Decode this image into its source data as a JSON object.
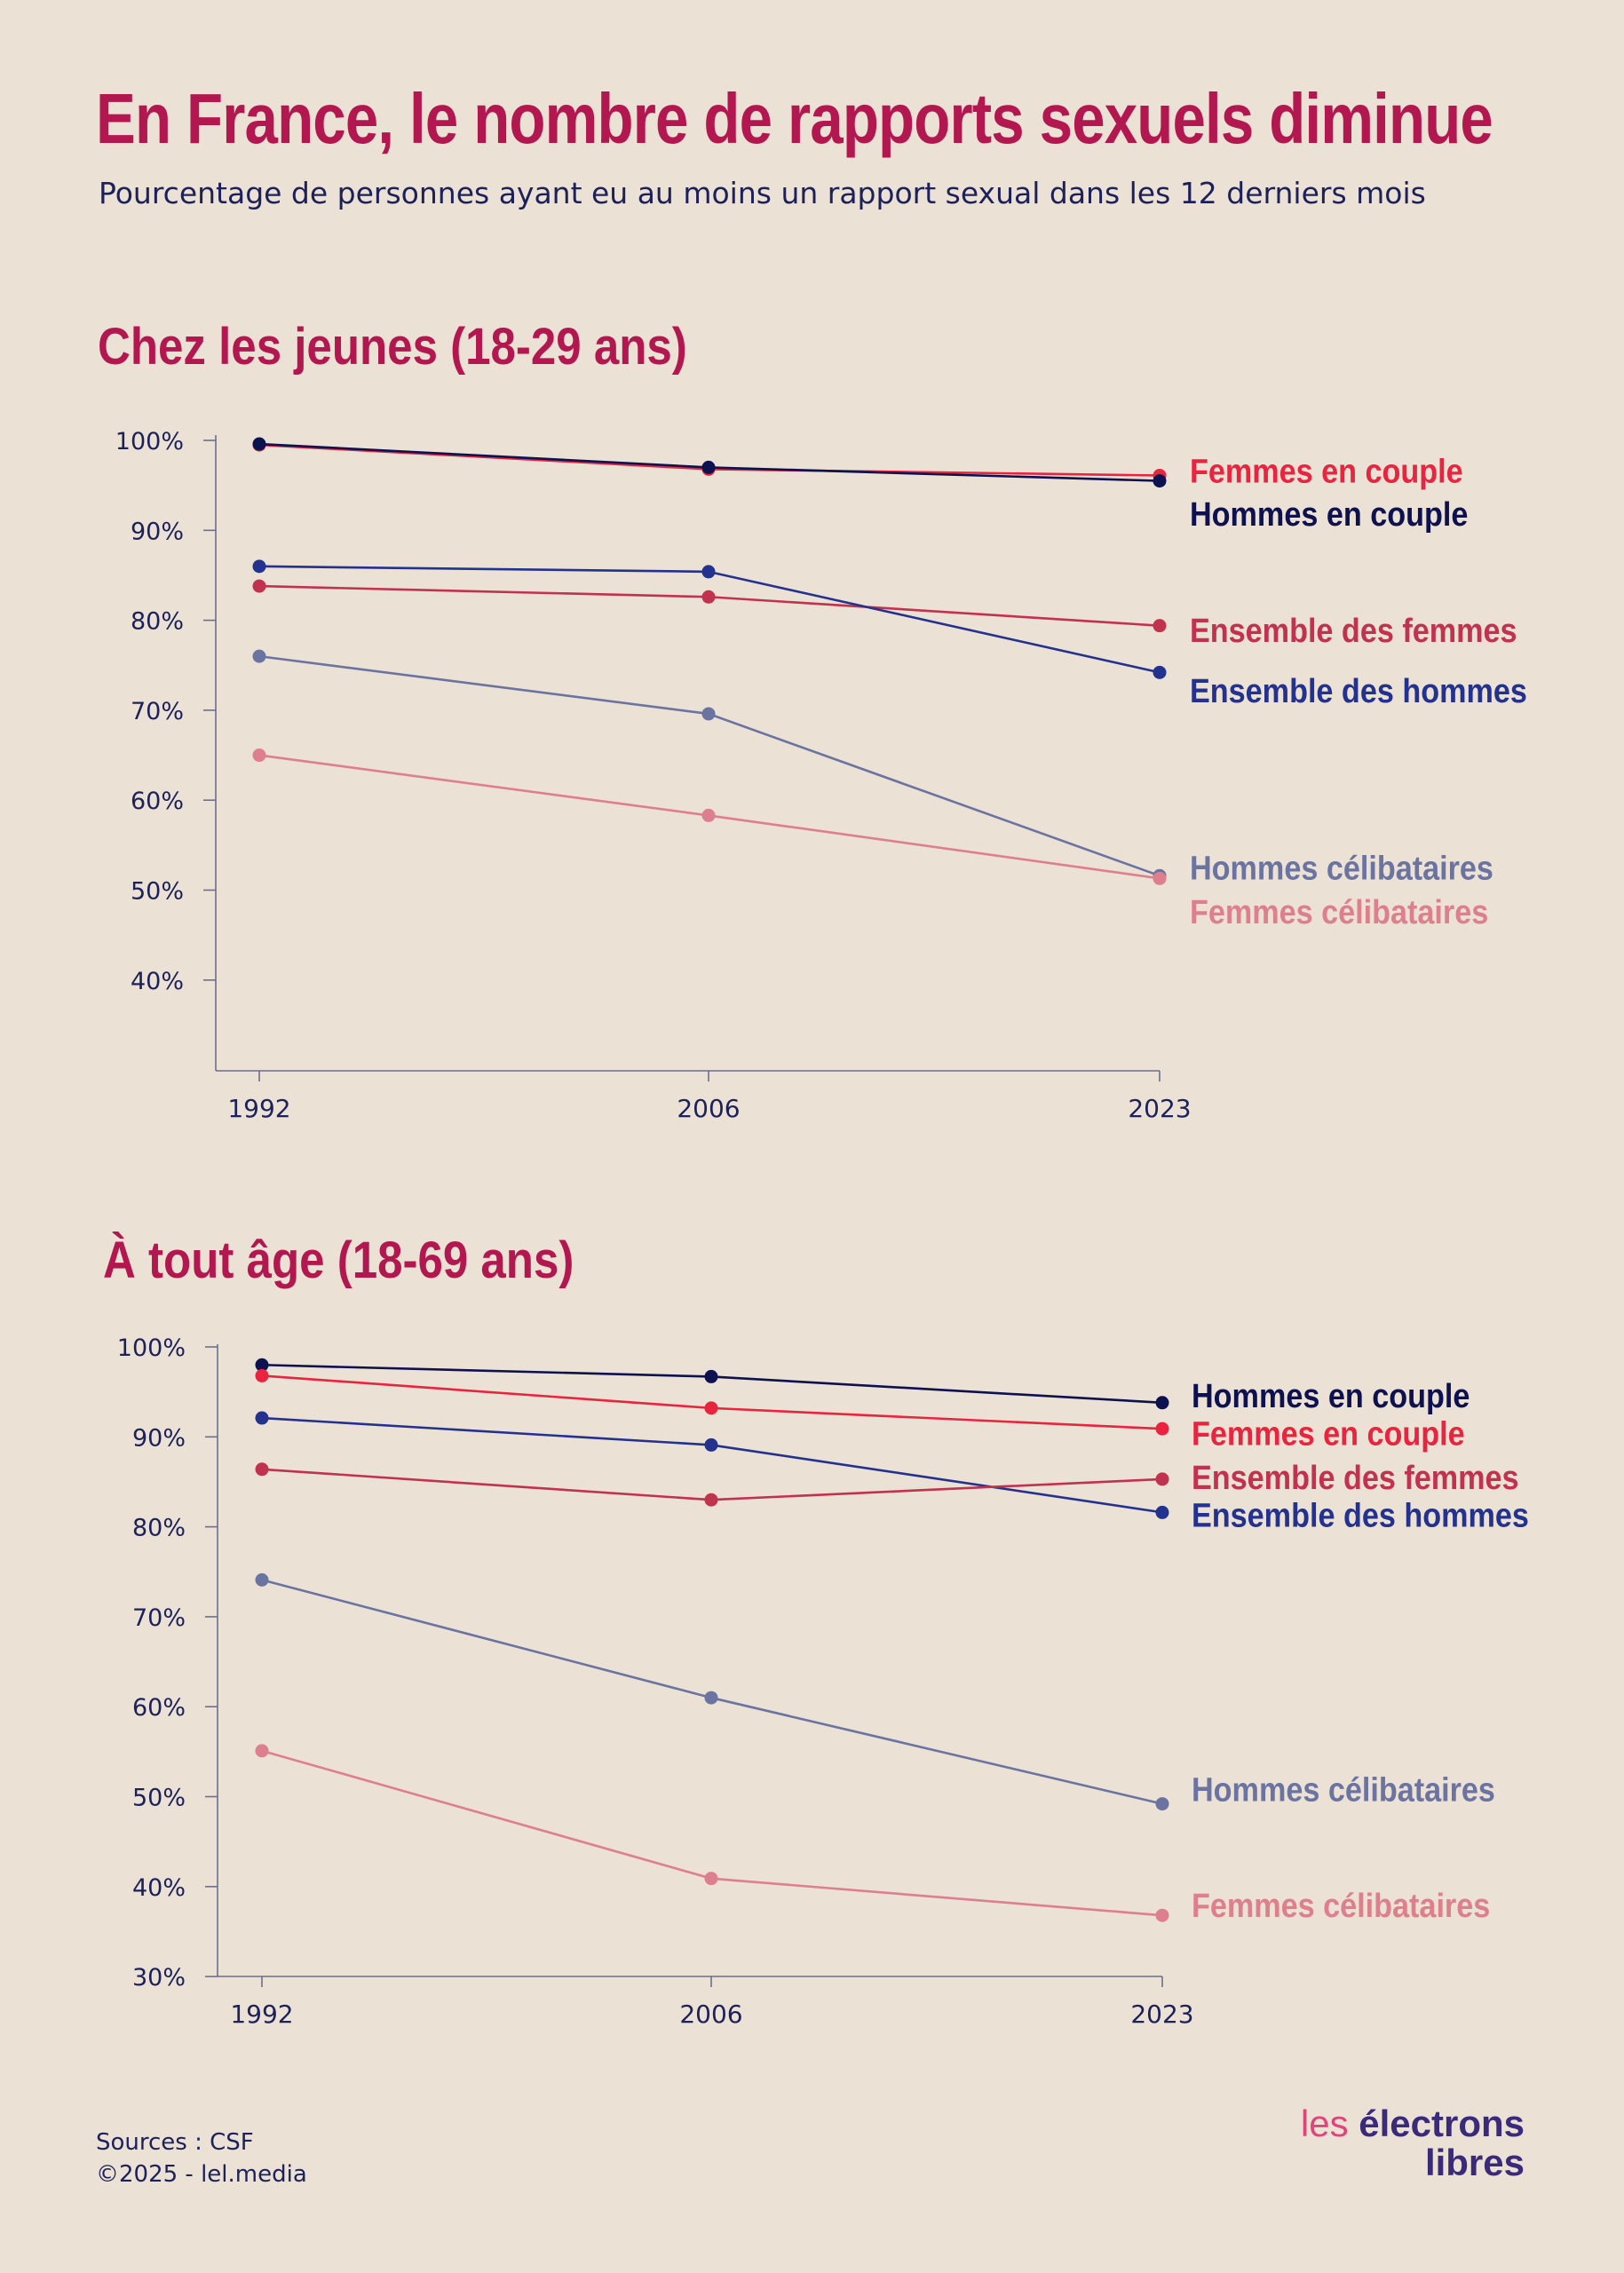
{
  "title": "En France, le nombre de rapports sexuels diminue",
  "subtitle": "Pourcentage de personnes ayant eu au moins un rapport sexual dans les 12 derniers mois",
  "footer": {
    "sources": "Sources : CSF",
    "copyright": "©2025 - lel.media"
  },
  "logo": {
    "line1_prefix": "les",
    "line1_word": "électrons",
    "line2": "libres"
  },
  "colors": {
    "background": "#ebe1d5",
    "title": "#b3174f",
    "axis": "#6a6f8f",
    "femmes_couple": "#e8243f",
    "hommes_couple": "#0d1150",
    "ensemble_femmes": "#c1324f",
    "ensemble_hommes": "#23318f",
    "hommes_celibataires": "#6b73a1",
    "femmes_celibataires": "#de7f8d"
  },
  "chart_data": [
    {
      "type": "line",
      "title": "Chez les jeunes (18-29 ans)",
      "x": [
        "1992",
        "2006",
        "2023"
      ],
      "ylim": [
        30,
        100
      ],
      "yticks": [
        "100%",
        "90%",
        "80%",
        "70%",
        "60%",
        "50%",
        "40%"
      ],
      "grid": false,
      "legend": "right-end labels",
      "series": [
        {
          "name": "Femmes en couple",
          "color": "#e8243f",
          "values": [
            99.5,
            96.8,
            96.1
          ]
        },
        {
          "name": "Hommes en couple",
          "color": "#0d1150",
          "values": [
            99.6,
            97.0,
            95.5
          ]
        },
        {
          "name": "Ensemble des femmes",
          "color": "#c1324f",
          "values": [
            83.8,
            82.6,
            79.4
          ]
        },
        {
          "name": "Ensemble des hommes",
          "color": "#23318f",
          "values": [
            86.0,
            85.4,
            74.2
          ]
        },
        {
          "name": "Hommes célibataires",
          "color": "#6b73a1",
          "values": [
            76.0,
            69.6,
            51.6
          ]
        },
        {
          "name": "Femmes célibataires",
          "color": "#de7f8d",
          "values": [
            65.0,
            58.3,
            51.3
          ]
        }
      ],
      "labels_order_y": [
        {
          "name": "Femmes en couple",
          "y": 95.3
        },
        {
          "name": "Hommes en couple",
          "y": 90.5
        },
        {
          "name": "Ensemble des femmes",
          "y": 77.6
        },
        {
          "name": "Ensemble des hommes",
          "y": 70.9
        },
        {
          "name": "Hommes célibataires",
          "y": 51.2
        },
        {
          "name": "Femmes célibataires",
          "y": 46.3
        }
      ]
    },
    {
      "type": "line",
      "title": "À tout âge (18-69 ans)",
      "x": [
        "1992",
        "2006",
        "2023"
      ],
      "ylim": [
        30,
        100
      ],
      "yticks": [
        "100%",
        "90%",
        "80%",
        "70%",
        "60%",
        "50%",
        "40%",
        "30%"
      ],
      "grid": false,
      "legend": "right-end labels",
      "series": [
        {
          "name": "Hommes en couple",
          "color": "#0d1150",
          "values": [
            98.0,
            96.7,
            93.8
          ]
        },
        {
          "name": "Femmes en couple",
          "color": "#e8243f",
          "values": [
            96.8,
            93.2,
            90.9
          ]
        },
        {
          "name": "Ensemble des hommes",
          "color": "#23318f",
          "values": [
            92.1,
            89.1,
            81.6
          ]
        },
        {
          "name": "Ensemble des femmes",
          "color": "#c1324f",
          "values": [
            86.4,
            83.0,
            85.3
          ]
        },
        {
          "name": "Hommes célibataires",
          "color": "#6b73a1",
          "values": [
            74.1,
            61.0,
            49.2
          ]
        },
        {
          "name": "Femmes célibataires",
          "color": "#de7f8d",
          "values": [
            55.1,
            40.9,
            36.8
          ]
        }
      ],
      "labels_order_y": [
        {
          "name": "Hommes en couple",
          "y": 93.3
        },
        {
          "name": "Femmes en couple",
          "y": 89.1
        },
        {
          "name": "Ensemble des femmes",
          "y": 84.2
        },
        {
          "name": "Ensemble des hommes",
          "y": 80.0
        },
        {
          "name": "Hommes célibataires",
          "y": 49.5
        },
        {
          "name": "Femmes célibataires",
          "y": 36.6
        }
      ]
    }
  ]
}
